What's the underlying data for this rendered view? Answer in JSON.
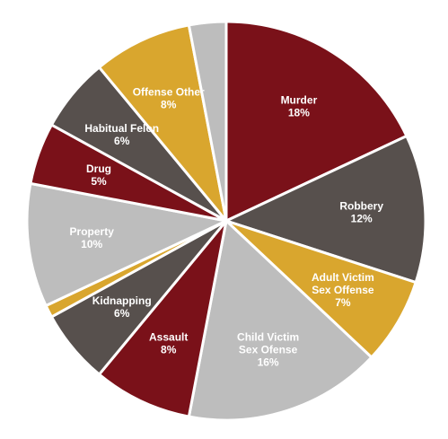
{
  "chart_data": {
    "type": "pie",
    "title": "",
    "slices": [
      {
        "lines": [
          "Murder",
          "18%"
        ],
        "value": 18,
        "color": "#7a1119"
      },
      {
        "lines": [
          "Robbery",
          "12%"
        ],
        "value": 12,
        "color": "#57504d"
      },
      {
        "lines": [
          "Adult Victim",
          "Sex Offense",
          "7%"
        ],
        "value": 7,
        "color": "#d9a62e"
      },
      {
        "lines": [
          "Child Victim",
          "Sex Ofense",
          "16%"
        ],
        "value": 16,
        "color": "#bdbdbd"
      },
      {
        "lines": [
          "Assault",
          "8%"
        ],
        "value": 8,
        "color": "#7a1119"
      },
      {
        "lines": [
          "Kidnapping",
          "6%"
        ],
        "value": 6,
        "color": "#57504d"
      },
      {
        "lines": [],
        "value": 1,
        "color": "#d9a62e"
      },
      {
        "lines": [
          "Property",
          "10%"
        ],
        "value": 10,
        "color": "#bdbdbd"
      },
      {
        "lines": [
          "Drug",
          "5%"
        ],
        "value": 5,
        "color": "#7a1119"
      },
      {
        "lines": [
          "Habitual Felon",
          "6%"
        ],
        "value": 6,
        "color": "#57504d"
      },
      {
        "lines": [
          "Offense Other",
          "8%"
        ],
        "value": 8,
        "color": "#d9a62e"
      },
      {
        "lines": [],
        "value": 3,
        "color": "#bdbdbd"
      }
    ]
  }
}
